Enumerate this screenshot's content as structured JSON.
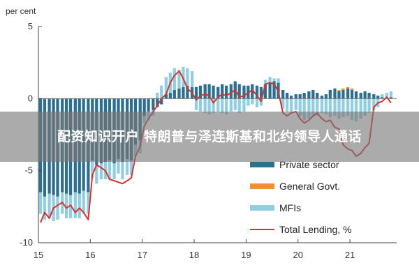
{
  "chart_data": {
    "type": "bar",
    "stacked": true,
    "unit_label": "per cent",
    "y_ticks": [
      5,
      0,
      -5,
      -10
    ],
    "ylim": [
      -10,
      5
    ],
    "x_tick_labels": [
      "15",
      "16",
      "17",
      "18",
      "19",
      "20",
      "21"
    ],
    "x_range": [
      2015.0,
      2021.9
    ],
    "grid": "none",
    "legend_position": "bottom-right",
    "legend": [
      {
        "label": "Private sector",
        "color": "#2e6f8e"
      },
      {
        "label": "General Govt.",
        "color": "#f0912f"
      },
      {
        "label": "MFIs",
        "color": "#93cde0"
      },
      {
        "label": "Total Lending, %",
        "color": "#d7322d"
      }
    ],
    "x": [
      2015.04,
      2015.12,
      2015.21,
      2015.29,
      2015.37,
      2015.46,
      2015.54,
      2015.62,
      2015.71,
      2015.79,
      2015.87,
      2015.96,
      2016.04,
      2016.12,
      2016.21,
      2016.29,
      2016.37,
      2016.46,
      2016.54,
      2016.62,
      2016.71,
      2016.79,
      2016.87,
      2016.96,
      2017.04,
      2017.12,
      2017.21,
      2017.29,
      2017.37,
      2017.46,
      2017.54,
      2017.62,
      2017.71,
      2017.79,
      2017.87,
      2017.96,
      2018.04,
      2018.12,
      2018.21,
      2018.29,
      2018.37,
      2018.46,
      2018.54,
      2018.62,
      2018.71,
      2018.79,
      2018.87,
      2018.96,
      2019.04,
      2019.12,
      2019.21,
      2019.29,
      2019.37,
      2019.46,
      2019.54,
      2019.62,
      2019.71,
      2019.79,
      2019.87,
      2019.96,
      2020.04,
      2020.12,
      2020.21,
      2020.29,
      2020.37,
      2020.46,
      2020.54,
      2020.62,
      2020.71,
      2020.79,
      2020.87,
      2020.96,
      2021.04,
      2021.12,
      2021.21,
      2021.29,
      2021.37,
      2021.46,
      2021.54,
      2021.62,
      2021.71,
      2021.79
    ],
    "series": [
      {
        "name": "Private sector",
        "color": "#2e6f8e",
        "values": [
          -6.5,
          -6.8,
          -6.6,
          -6.7,
          -6.8,
          -6.5,
          -6.6,
          -6.7,
          -6.5,
          -6.6,
          -6.4,
          -6.5,
          -4.3,
          -4.6,
          -4.5,
          -4.4,
          -4.3,
          -4.5,
          -4.2,
          -4.4,
          -4.2,
          -4.3,
          -3.2,
          -2.9,
          -1.2,
          -0.9,
          -0.8,
          -0.6,
          -0.4,
          0.3,
          0.4,
          0.6,
          0.7,
          0.8,
          0.9,
          0.8,
          0.8,
          0.9,
          1.0,
          1.0,
          0.9,
          0.8,
          1.0,
          0.9,
          1.0,
          1.2,
          1.0,
          0.9,
          0.9,
          1.0,
          0.9,
          0.8,
          1.0,
          1.1,
          1.2,
          1.1,
          0.6,
          0.4,
          0.2,
          0.3,
          0.3,
          0.4,
          0.5,
          0.6,
          0.4,
          0.2,
          0.3,
          0.6,
          0.7,
          0.5,
          0.6,
          0.7,
          0.6,
          0.5,
          0.4,
          0.5,
          0.4,
          0.3,
          0.2,
          0.1,
          0.1,
          0.1
        ]
      },
      {
        "name": "General Govt.",
        "color": "#f0912f",
        "values": [
          0,
          0,
          0,
          0,
          0,
          0,
          0,
          0,
          0,
          0,
          0,
          0,
          0,
          0,
          0,
          0,
          0,
          0,
          0,
          0,
          0,
          0,
          0,
          0,
          0,
          0,
          0,
          0,
          0,
          0,
          0,
          0,
          0,
          0,
          0,
          0,
          0,
          0,
          0,
          0,
          0,
          0,
          0,
          0,
          0,
          0,
          0,
          0,
          0,
          0,
          0,
          0,
          0,
          0,
          0,
          0,
          0,
          0,
          0,
          0,
          0,
          0,
          0,
          0,
          0,
          0,
          0,
          0,
          0,
          0.1,
          0.1,
          0.1,
          0.1,
          0,
          0,
          0,
          0,
          0,
          0,
          0,
          0,
          0
        ]
      },
      {
        "name": "MFIs",
        "color": "#93cde0",
        "values": [
          -1.5,
          -1.6,
          -1.7,
          -1.8,
          -1.6,
          -1.5,
          -1.7,
          -1.6,
          -1.8,
          -1.7,
          -1.6,
          -1.5,
          -1.2,
          -1.3,
          -1.1,
          -1.2,
          -1.3,
          -1.1,
          -1.0,
          -1.2,
          -1.1,
          -1.0,
          -0.8,
          -0.9,
          -0.5,
          -0.6,
          -0.4,
          0.4,
          0.9,
          1.2,
          1.4,
          1.5,
          1.3,
          1.4,
          1.2,
          1.1,
          -0.8,
          -0.9,
          -1.0,
          -1.1,
          -1.0,
          -0.9,
          -1.0,
          -1.1,
          -0.9,
          -0.8,
          -1.0,
          -0.9,
          -0.5,
          -0.4,
          -0.6,
          -0.5,
          0.3,
          0.4,
          0.2,
          0.3,
          -0.7,
          -0.9,
          -1.0,
          -0.8,
          -1.2,
          -1.5,
          -1.4,
          -1.3,
          -1.2,
          -1.0,
          -1.1,
          -1.3,
          -1.2,
          -1.4,
          -1.3,
          -1.2,
          -1.5,
          -1.6,
          -1.4,
          -1.2,
          -1.0,
          -0.8,
          -0.6,
          0.2,
          0.3,
          0.4
        ]
      },
      {
        "name": "Total Lending, %",
        "color": "#d7322d",
        "kind": "line",
        "values": [
          -8.6,
          -7.9,
          -8.3,
          -7.6,
          -7.4,
          -7.2,
          -7.6,
          -7.4,
          -7.9,
          -7.6,
          -7.9,
          -8.4,
          -5.3,
          -4.6,
          -4.8,
          -5.0,
          -5.6,
          -5.7,
          -5.8,
          -5.9,
          -5.7,
          -5.5,
          -4.0,
          -3.3,
          -1.9,
          -1.4,
          -0.9,
          -0.5,
          0.0,
          0.3,
          1.1,
          1.6,
          1.9,
          1.4,
          0.7,
          0.4,
          -0.1,
          0.2,
          0.3,
          0.2,
          -0.3,
          0.1,
          0.3,
          0.2,
          0.4,
          0.6,
          0.1,
          0.2,
          0.4,
          0.6,
          0.2,
          -0.2,
          1.0,
          1.1,
          1.0,
          0.5,
          -1.0,
          -1.2,
          -1.0,
          -0.9,
          -1.4,
          -1.7,
          -1.5,
          -1.2,
          -1.0,
          -1.4,
          -1.6,
          -1.5,
          -2.0,
          -2.1,
          -3.2,
          -3.5,
          -3.6,
          -4.0,
          -3.8,
          -3.4,
          -3.1,
          -0.6,
          -0.3,
          -0.2,
          0.1,
          -0.3
        ]
      }
    ]
  },
  "banner": {
    "text": "配资知识开户 特朗普与泽连斯基和北约领导人通话"
  }
}
